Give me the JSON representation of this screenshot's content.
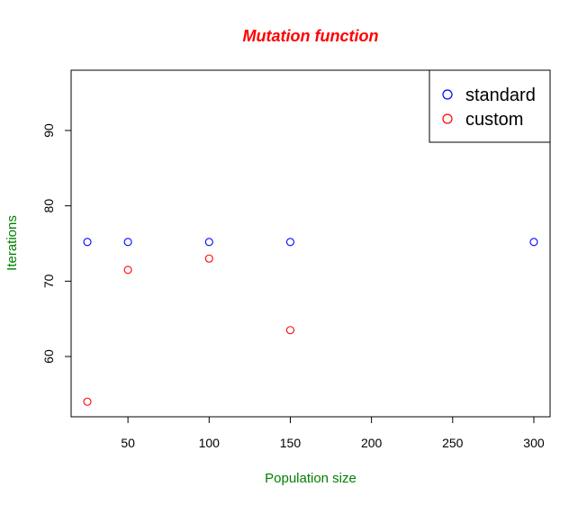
{
  "chart_data": {
    "type": "scatter",
    "title": "Mutation function",
    "xlabel": "Population size",
    "ylabel": "Iterations",
    "xlim": [
      15,
      310
    ],
    "ylim": [
      52,
      98
    ],
    "xticks": [
      50,
      100,
      150,
      200,
      250,
      300
    ],
    "yticks": [
      60,
      70,
      80,
      90
    ],
    "grid": false,
    "legend_position": "top-right",
    "colors": {
      "title": "#ff0000",
      "axis_labels": "#008000",
      "axes": "#000000"
    },
    "series": [
      {
        "name": "standard",
        "color": "#0000ff",
        "x": [
          25,
          50,
          100,
          150,
          300
        ],
        "y": [
          75.2,
          75.2,
          75.2,
          75.2,
          75.2
        ]
      },
      {
        "name": "custom",
        "color": "#ff0000",
        "x": [
          25,
          50,
          100,
          150
        ],
        "y": [
          54,
          71.5,
          73,
          63.5
        ]
      }
    ]
  }
}
